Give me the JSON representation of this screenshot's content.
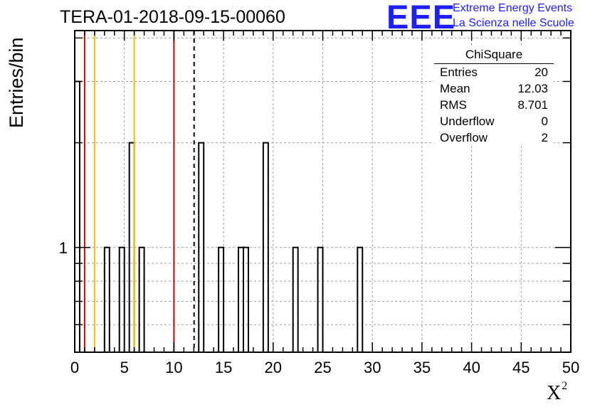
{
  "page": {
    "title": "TERA-01-2018-09-15-00060",
    "logo_text": "EEE",
    "logo_line1": "Extreme Energy Events",
    "logo_line2": "La Scienza nelle Scuole"
  },
  "stats": {
    "title": "ChiSquare",
    "rows": [
      {
        "label": "Entries",
        "value": "20"
      },
      {
        "label": "Mean",
        "value": "12.03"
      },
      {
        "label": "RMS",
        "value": "8.701"
      },
      {
        "label": "Underflow",
        "value": "0"
      },
      {
        "label": "Overflow",
        "value": "2"
      }
    ]
  },
  "colors": {
    "red": "#dd0000",
    "yellow": "#f0c000",
    "grid": "#a0a0a0",
    "axis": "#000000"
  },
  "chart_data": {
    "type": "bar",
    "title": "TERA-01-2018-09-15-00060",
    "xlabel": "X",
    "xlabel_superscript": "2",
    "ylabel": "Entries/bin",
    "xlim": [
      0,
      50
    ],
    "y_scale": "log",
    "ylim": [
      0.5,
      4.2
    ],
    "bin_width": 0.5,
    "x_ticks": [
      0,
      5,
      10,
      15,
      20,
      25,
      30,
      35,
      40,
      45,
      50
    ],
    "y_tick_label": "1",
    "y_tick_label_value": 1,
    "grid": true,
    "bins": [
      {
        "x": 0.0,
        "count": 3
      },
      {
        "x": 3.0,
        "count": 1
      },
      {
        "x": 4.5,
        "count": 1
      },
      {
        "x": 5.5,
        "count": 2
      },
      {
        "x": 6.5,
        "count": 1
      },
      {
        "x": 12.5,
        "count": 2
      },
      {
        "x": 14.5,
        "count": 1
      },
      {
        "x": 16.5,
        "count": 1
      },
      {
        "x": 17.0,
        "count": 1
      },
      {
        "x": 19.0,
        "count": 2
      },
      {
        "x": 22.0,
        "count": 1
      },
      {
        "x": 24.5,
        "count": 1
      },
      {
        "x": 28.5,
        "count": 1
      }
    ],
    "vertical_lines": [
      {
        "x": 1,
        "color": "red",
        "style": "solid"
      },
      {
        "x": 2,
        "color": "yellow",
        "style": "solid"
      },
      {
        "x": 6,
        "color": "yellow",
        "style": "solid"
      },
      {
        "x": 10,
        "color": "red",
        "style": "solid"
      },
      {
        "x": 12.03,
        "color": "black",
        "style": "dashed"
      }
    ]
  }
}
